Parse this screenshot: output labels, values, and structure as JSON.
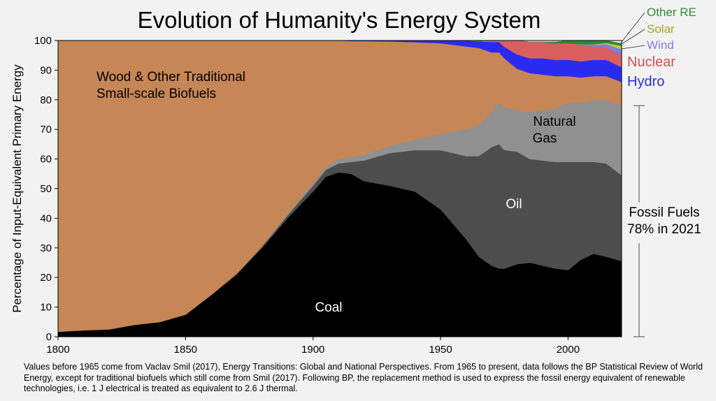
{
  "chart_data": {
    "type": "area",
    "stacked": true,
    "title": "Evolution of Humanity's Energy System",
    "ylabel": "Percentage of Input-Equivalent Primary Energy",
    "xlabel": "",
    "xlim": [
      1800,
      2021
    ],
    "ylim": [
      0,
      100
    ],
    "x_ticks": [
      "1800",
      "1850",
      "1900",
      "1950",
      "2000"
    ],
    "y_ticks": [
      "0",
      "10",
      "20",
      "30",
      "40",
      "50",
      "60",
      "70",
      "80",
      "90",
      "100"
    ],
    "x": [
      1800,
      1810,
      1820,
      1830,
      1840,
      1850,
      1860,
      1870,
      1880,
      1890,
      1900,
      1905,
      1910,
      1915,
      1920,
      1930,
      1940,
      1950,
      1960,
      1965,
      1970,
      1973,
      1975,
      1980,
      1985,
      1990,
      1995,
      2000,
      2005,
      2010,
      2015,
      2021
    ],
    "series": [
      {
        "name": "Coal",
        "color": "#000000",
        "values": [
          1.7,
          2.2,
          2.5,
          4.0,
          5.0,
          7.5,
          14.0,
          21.0,
          30.0,
          40.0,
          49.0,
          54.0,
          55.5,
          55.0,
          52.5,
          51.0,
          49.0,
          43.0,
          33.0,
          27.0,
          24.0,
          23.0,
          23.0,
          24.5,
          25.0,
          24.0,
          23.0,
          22.5,
          26.0,
          28.0,
          27.0,
          25.5
        ]
      },
      {
        "name": "Oil",
        "color": "#4d4d4d",
        "values": [
          0,
          0,
          0,
          0,
          0,
          0,
          0.1,
          0.3,
          0.5,
          1.0,
          2.0,
          2.3,
          3.0,
          4.0,
          7.0,
          11.0,
          14.0,
          20.0,
          28.0,
          34.0,
          40.0,
          42.0,
          40.0,
          38.0,
          35.0,
          35.5,
          36.0,
          36.5,
          33.0,
          31.0,
          31.5,
          29.0
        ]
      },
      {
        "name": "Natural Gas",
        "color": "#909090",
        "values": [
          0,
          0,
          0,
          0,
          0,
          0,
          0,
          0,
          0.1,
          0.5,
          0.8,
          1.0,
          1.5,
          1.8,
          2.0,
          2.5,
          3.5,
          5.5,
          9.0,
          10.5,
          12.0,
          14.0,
          14.5,
          14.0,
          16.0,
          17.0,
          18.0,
          20.0,
          20.0,
          21.0,
          21.5,
          23.5
        ]
      },
      {
        "name": "Wood & Other Traditional Small-scale Biofuels",
        "color": "#c78655",
        "values": [
          98.3,
          97.8,
          97.5,
          96.0,
          95.0,
          92.5,
          85.9,
          78.7,
          69.4,
          58.5,
          48.2,
          42.7,
          40.0,
          39.0,
          38.3,
          35.2,
          32.9,
          30.6,
          28.0,
          26.0,
          20.0,
          17.0,
          16.5,
          14.0,
          13.0,
          12.0,
          11.0,
          9.0,
          8.5,
          8.0,
          8.0,
          8.0
        ]
      },
      {
        "name": "Hydro",
        "color": "#2b2bef",
        "values": [
          0,
          0,
          0,
          0,
          0,
          0,
          0,
          0,
          0,
          0,
          0,
          0,
          0,
          0.2,
          0.2,
          0.3,
          0.6,
          0.9,
          2.0,
          2.2,
          3.5,
          3.5,
          3.9,
          4.8,
          5.0,
          5.5,
          5.5,
          5.5,
          5.5,
          5.5,
          5.5,
          5.0
        ]
      },
      {
        "name": "Nuclear",
        "color": "#d95f5f",
        "values": [
          0,
          0,
          0,
          0,
          0,
          0,
          0,
          0,
          0,
          0,
          0,
          0,
          0,
          0,
          0,
          0,
          0,
          0,
          0,
          0.1,
          0.5,
          0.5,
          2.1,
          4.7,
          5.5,
          5.5,
          5.5,
          5.5,
          5.5,
          4.5,
          4.3,
          4.0
        ]
      },
      {
        "name": "Wind",
        "color": "#7b7fe8",
        "values": [
          0,
          0,
          0,
          0,
          0,
          0,
          0,
          0,
          0,
          0,
          0,
          0,
          0,
          0,
          0,
          0,
          0,
          0,
          0,
          0,
          0,
          0,
          0,
          0,
          0,
          0,
          0,
          0,
          0.2,
          0.6,
          1.0,
          2.0
        ]
      },
      {
        "name": "Solar",
        "color": "#c6c63a",
        "values": [
          0,
          0,
          0,
          0,
          0,
          0,
          0,
          0,
          0,
          0,
          0,
          0,
          0,
          0,
          0,
          0,
          0,
          0,
          0,
          0,
          0,
          0,
          0,
          0,
          0,
          0,
          0,
          0,
          0,
          0.1,
          0.4,
          1.2
        ]
      },
      {
        "name": "Other RE",
        "color": "#2e8b2e",
        "values": [
          0,
          0,
          0,
          0,
          0,
          0,
          0,
          0,
          0,
          0,
          0,
          0,
          0,
          0,
          0,
          0,
          0,
          0,
          0,
          0,
          0,
          0,
          0,
          0,
          0,
          0,
          0.5,
          1.0,
          1.3,
          1.3,
          0.8,
          0.8
        ]
      }
    ],
    "labels": {
      "wood_line1": "Wood & Other Traditional",
      "wood_line2": "Small-scale Biofuels",
      "coal": "Coal",
      "oil": "Oil",
      "gas_line1": "Natural",
      "gas_line2": "Gas",
      "fossil_line1": "Fossil Fuels",
      "fossil_line2": "78% in 2021"
    },
    "fossil_bracket": {
      "from": 0,
      "to": 78
    },
    "legend": [
      {
        "label": "Other RE",
        "color": "#2e8b2e"
      },
      {
        "label": "Solar",
        "color": "#a5a520"
      },
      {
        "label": "Wind",
        "color": "#7b7fe8"
      },
      {
        "label": "Nuclear",
        "color": "#d94c4c"
      },
      {
        "label": "Hydro",
        "color": "#2b2bef"
      }
    ],
    "legend_placement": "right"
  },
  "caption": "Values before 1965 come from Vaclav Smil (2017), Energy Transitions: Global and National Perspectives.  From 1965 to present, data follows the BP Statistical Review of World Energy, except for traditional biofuels which still come from Smil (2017).  Following BP, the replacement method is used to express the fossil energy equivalent of renewable technologies, i.e. 1 J electrical is treated as equivalent to 2.6 J thermal."
}
